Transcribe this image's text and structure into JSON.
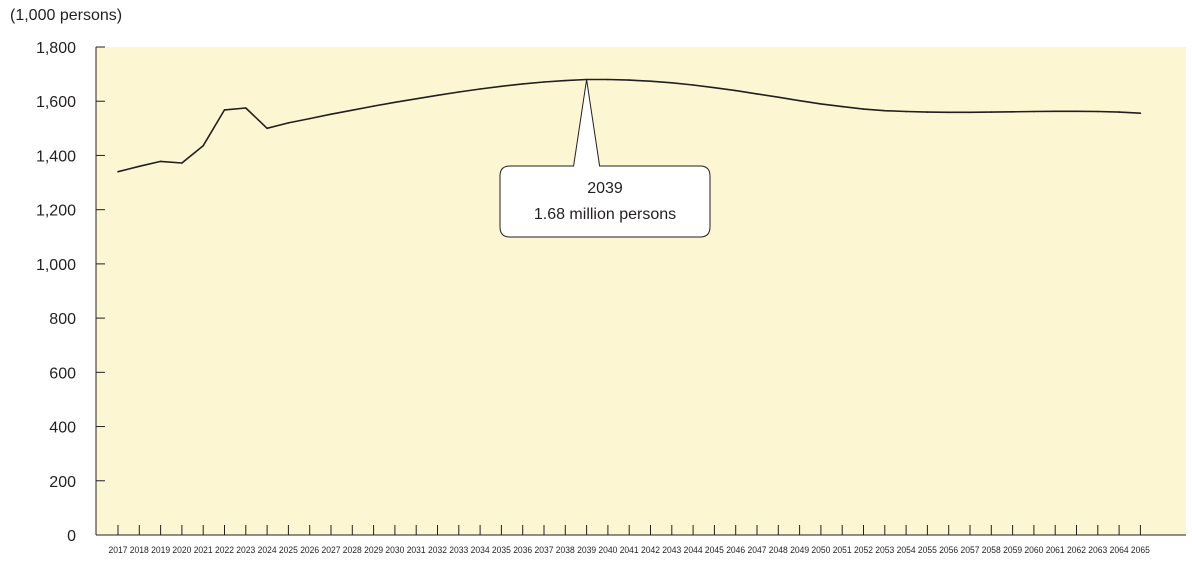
{
  "chart_data": {
    "type": "line",
    "unit_label": "(1,000 persons)",
    "xlabel": "",
    "ylabel": "",
    "ylim": [
      0,
      1800
    ],
    "yticks": [
      0,
      200,
      400,
      600,
      800,
      1000,
      1200,
      1400,
      1600,
      1800
    ],
    "ytick_labels": [
      "0",
      "200",
      "400",
      "600",
      "800",
      "1,000",
      "1,200",
      "1,400",
      "1,600",
      "1,800"
    ],
    "grid": false,
    "plot_background": "#fdf6d3",
    "line_color": "#231f20",
    "categories": [
      "2017",
      "2018",
      "2019",
      "2020",
      "2021",
      "2022",
      "2023",
      "2024",
      "2025",
      "2026",
      "2027",
      "2028",
      "2029",
      "2030",
      "2031",
      "2032",
      "2033",
      "2034",
      "2035",
      "2036",
      "2037",
      "2038",
      "2039",
      "2040",
      "2041",
      "2042",
      "2043",
      "2044",
      "2045",
      "2046",
      "2047",
      "2048",
      "2049",
      "2050",
      "2051",
      "2052",
      "2053",
      "2054",
      "2055",
      "2056",
      "2057",
      "2058",
      "2059",
      "2060",
      "2061",
      "2062",
      "2063",
      "2064",
      "2065"
    ],
    "series": [
      {
        "values": [
          1340,
          1360,
          1378,
          1372,
          1436,
          1568,
          1575,
          1500,
          1520,
          1536,
          1552,
          1567,
          1582,
          1596,
          1609,
          1622,
          1634,
          1645,
          1655,
          1664,
          1671,
          1676,
          1680,
          1680,
          1678,
          1674,
          1668,
          1660,
          1650,
          1639,
          1627,
          1615,
          1602,
          1590,
          1580,
          1571,
          1565,
          1562,
          1560,
          1559,
          1559,
          1560,
          1561,
          1562,
          1563,
          1563,
          1562,
          1560,
          1556
        ]
      }
    ],
    "annotation": {
      "category": "2039",
      "value": 1680,
      "lines": [
        "2039",
        "1.68 million persons"
      ]
    }
  }
}
